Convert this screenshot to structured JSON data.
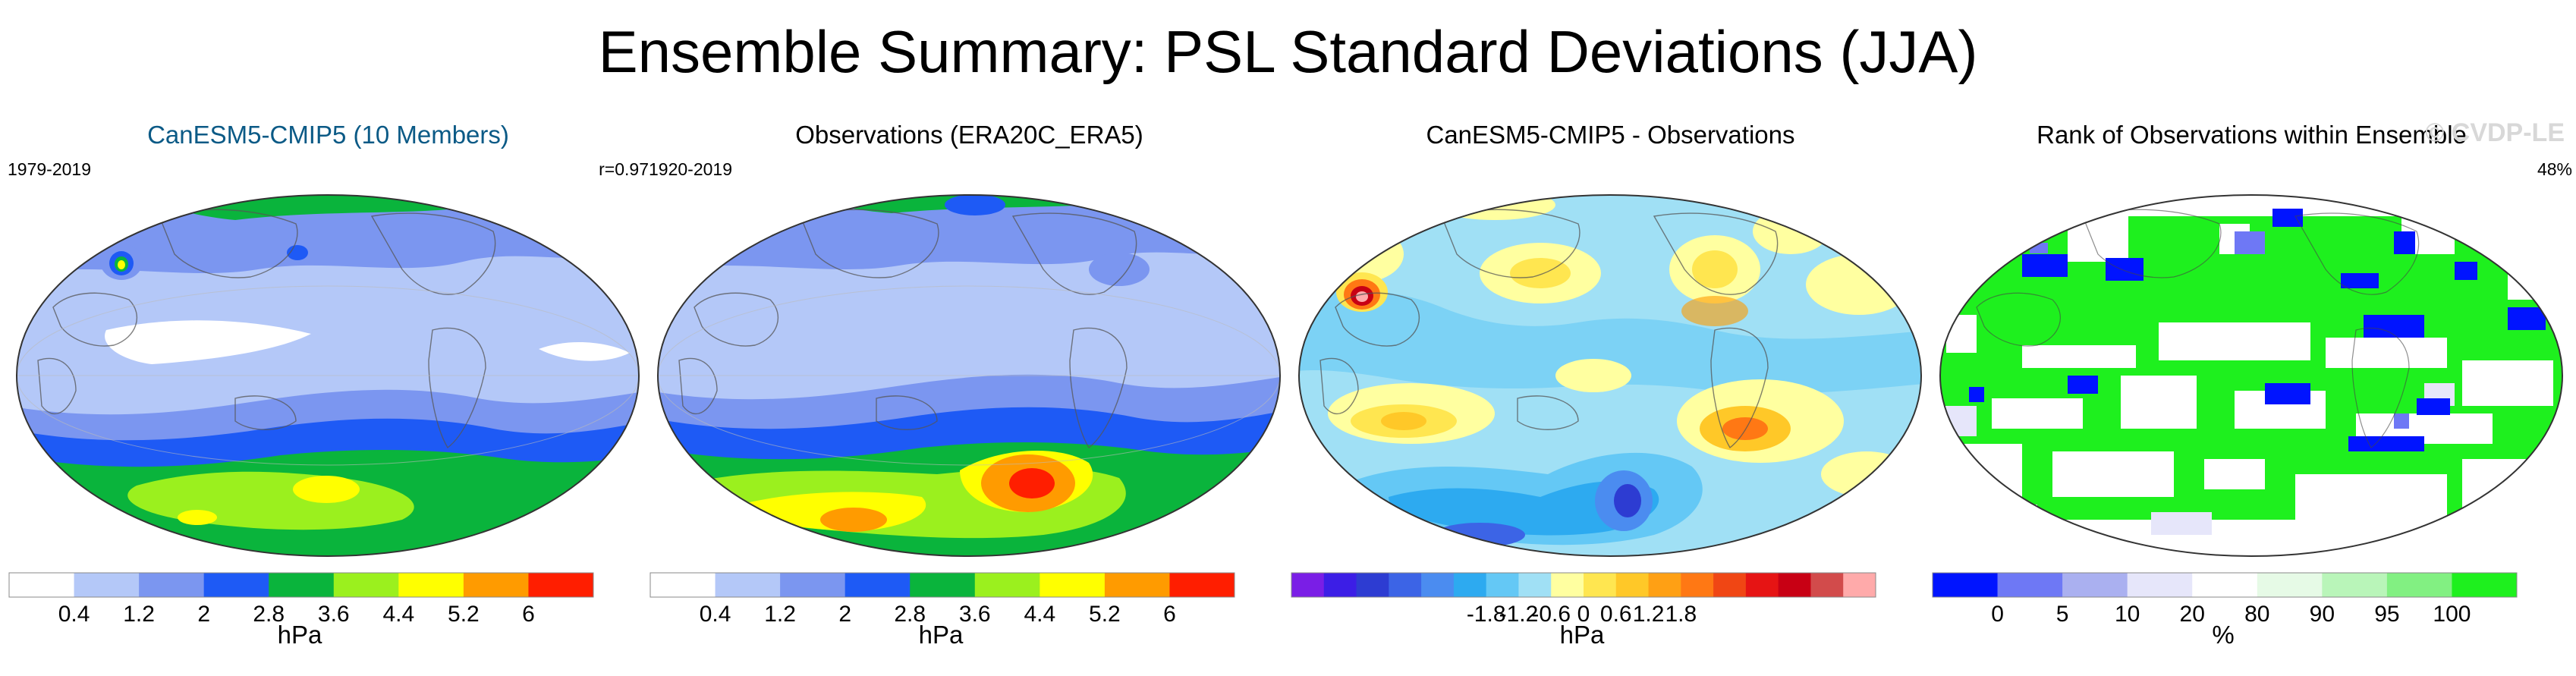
{
  "title": "Ensemble Summary: PSL Standard Deviations (JJA)",
  "panels": [
    {
      "title": "CanESM5-CMIP5 (10 Members)",
      "title_color": "#0b5a86",
      "left_label": "1979-2019",
      "right_label": "r=0.97",
      "watermark": "",
      "colorbar": {
        "colors": [
          "#ffffff",
          "#b4c8f8",
          "#7b96f0",
          "#1e5af5",
          "#0ab43c",
          "#9bf01e",
          "#ffff00",
          "#ff9b00",
          "#ff1e00"
        ],
        "tick_labels": [
          "0.4",
          "1.2",
          "2",
          "2.8",
          "3.6",
          "4.4",
          "5.2",
          "6"
        ],
        "unit": "hPa"
      }
    },
    {
      "title": "Observations (ERA20C_ERA5)",
      "title_color": "#000000",
      "left_label": "1920-2019",
      "right_label": "",
      "watermark": "",
      "colorbar": {
        "colors": [
          "#ffffff",
          "#b4c8f8",
          "#7b96f0",
          "#1e5af5",
          "#0ab43c",
          "#9bf01e",
          "#ffff00",
          "#ff9b00",
          "#ff1e00"
        ],
        "tick_labels": [
          "0.4",
          "1.2",
          "2",
          "2.8",
          "3.6",
          "4.4",
          "5.2",
          "6"
        ],
        "unit": "hPa"
      }
    },
    {
      "title": "CanESM5-CMIP5 - Observations",
      "title_color": "#000000",
      "left_label": "",
      "right_label": "",
      "watermark": "",
      "colorbar": {
        "colors": [
          "#7a1ee6",
          "#3c1ee6",
          "#2d3cd2",
          "#3c64e6",
          "#4b8cf0",
          "#2daaf0",
          "#64c8f5",
          "#a0e0f5",
          "#ffffa0",
          "#ffe650",
          "#ffc828",
          "#ffa014",
          "#ff7814",
          "#f04614",
          "#e61414",
          "#c80014",
          "#d24b4b",
          "#ffaaaa"
        ],
        "tick_labels": [
          "-1.8",
          "-1.2",
          "-0.6",
          "0",
          "0.6",
          "1.2",
          "1.8"
        ],
        "unit": "hPa"
      }
    },
    {
      "title": "Rank of Observations within Ensemble",
      "title_color": "#000000",
      "left_label": "",
      "right_label": "48%",
      "watermark": "© CVDP-LE",
      "colorbar": {
        "colors": [
          "#0014ff",
          "#6e78f5",
          "#aab0f0",
          "#e6e6fa",
          "#ffffff",
          "#e6fae6",
          "#b9f5b9",
          "#82f082",
          "#1ef01e"
        ],
        "tick_labels": [
          "0",
          "5",
          "10",
          "20",
          "80",
          "90",
          "95",
          "100"
        ],
        "unit": "%"
      }
    }
  ]
}
